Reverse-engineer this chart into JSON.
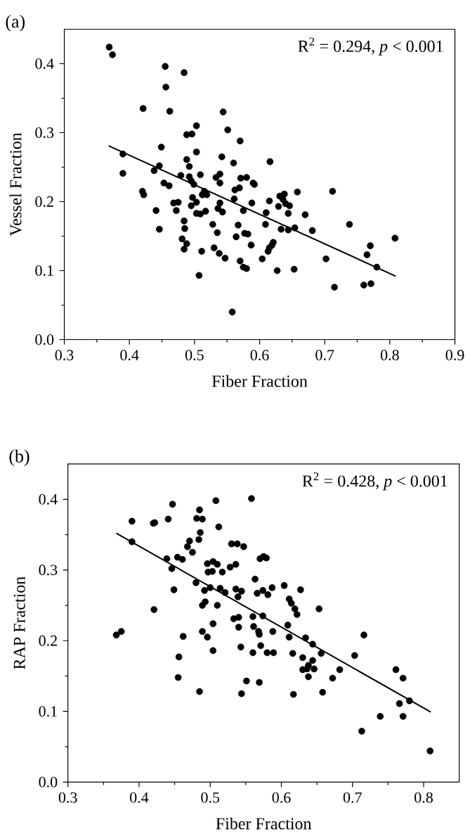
{
  "chart_data": [
    {
      "type": "scatter",
      "title": "(a)",
      "xlabel": "Fiber Fraction",
      "ylabel": "Vessel Fraction",
      "annotations": [
        "R$^{2}$ = 0.294, *p* < 0.001"
      ],
      "xlim": [
        0.3,
        0.9
      ],
      "ylim": [
        0,
        0.45
      ],
      "xticks": [
        0.3,
        0.4,
        0.5,
        0.6,
        0.7,
        0.8,
        0.9
      ],
      "yticks": [
        {
          "value": 0,
          "label": "0.0"
        },
        0.1,
        0.2,
        0.3,
        0.4
      ],
      "marker": "circle",
      "series": [
        {
          "color": "#000000",
          "x": [
            0.369,
            0.374,
            0.455,
            0.484,
            0.456,
            0.421,
            0.462,
            0.544,
            0.503,
            0.551,
            0.488,
            0.496,
            0.57,
            0.449,
            0.503,
            0.39,
            0.488,
            0.542,
            0.492,
            0.56,
            0.446,
            0.438,
            0.39,
            0.479,
            0.509,
            0.492,
            0.533,
            0.539,
            0.539,
            0.571,
            0.58,
            0.59,
            0.592,
            0.453,
            0.461,
            0.495,
            0.499,
            0.42,
            0.422,
            0.515,
            0.512,
            0.519,
            0.562,
            0.569,
            0.475,
            0.468,
            0.497,
            0.503,
            0.495,
            0.561,
            0.539,
            0.588,
            0.441,
            0.472,
            0.503,
            0.509,
            0.517,
            0.536,
            0.543,
            0.575,
            0.484,
            0.485,
            0.446,
            0.528,
            0.567,
            0.481,
            0.535,
            0.577,
            0.582,
            0.564,
            0.488,
            0.587,
            0.484,
            0.53,
            0.511,
            0.538,
            0.547,
            0.57,
            0.575,
            0.58,
            0.507,
            0.558,
            0.616,
            0.631,
            0.638,
            0.658,
            0.712,
            0.636,
            0.615,
            0.64,
            0.646,
            0.629,
            0.61,
            0.644,
            0.67,
            0.609,
            0.633,
            0.644,
            0.654,
            0.681,
            0.738,
            0.621,
            0.619,
            0.615,
            0.613,
            0.808,
            0.77,
            0.765,
            0.604,
            0.702,
            0.78,
            0.627,
            0.653,
            0.715,
            0.76,
            0.771
          ],
          "values": [
            0.424,
            0.413,
            0.396,
            0.387,
            0.366,
            0.335,
            0.331,
            0.33,
            0.31,
            0.304,
            0.297,
            0.298,
            0.288,
            0.279,
            0.272,
            0.269,
            0.261,
            0.265,
            0.251,
            0.256,
            0.252,
            0.245,
            0.241,
            0.238,
            0.239,
            0.236,
            0.235,
            0.24,
            0.227,
            0.234,
            0.235,
            0.227,
            0.225,
            0.227,
            0.223,
            0.23,
            0.225,
            0.215,
            0.21,
            0.215,
            0.21,
            0.21,
            0.217,
            0.22,
            0.199,
            0.198,
            0.206,
            0.199,
            0.194,
            0.204,
            0.198,
            0.198,
            0.187,
            0.187,
            0.183,
            0.182,
            0.186,
            0.19,
            0.185,
            0.187,
            0.172,
            0.161,
            0.16,
            0.167,
            0.166,
            0.146,
            0.155,
            0.154,
            0.153,
            0.149,
            0.139,
            0.137,
            0.131,
            0.133,
            0.128,
            0.125,
            0.118,
            0.114,
            0.105,
            0.103,
            0.093,
            0.04,
            0.258,
            0.208,
            0.211,
            0.214,
            0.215,
            0.203,
            0.201,
            0.197,
            0.194,
            0.193,
            0.184,
            0.183,
            0.181,
            0.167,
            0.16,
            0.159,
            0.162,
            0.158,
            0.167,
            0.141,
            0.137,
            0.133,
            0.128,
            0.147,
            0.136,
            0.123,
            0.117,
            0.117,
            0.105,
            0.1,
            0.102,
            0.076,
            0.079,
            0.081
          ]
        },
        {
          "type": "line",
          "color": "#000000",
          "marker": "none",
          "x": [
            0.368,
            0.809
          ],
          "values": [
            0.281,
            0.092
          ]
        }
      ]
    },
    {
      "type": "scatter",
      "title": "(b)",
      "xlabel": "Fiber Fraction",
      "ylabel": "RAP Fraction",
      "annotations": [
        "R$^{2}$ = 0.428, *p* < 0.001"
      ],
      "xlim": [
        0.3,
        0.85
      ],
      "ylim": [
        0,
        0.45
      ],
      "xticks": [
        0.3,
        0.4,
        0.5,
        0.6,
        0.7,
        0.8
      ],
      "yticks": [
        {
          "value": 0,
          "label": "0.0"
        },
        0.1,
        0.2,
        0.3,
        0.4
      ],
      "marker": "circle",
      "series": [
        {
          "color": "#000000",
          "x": [
            0.508,
            0.447,
            0.485,
            0.481,
            0.489,
            0.441,
            0.39,
            0.42,
            0.422,
            0.512,
            0.486,
            0.484,
            0.471,
            0.468,
            0.475,
            0.39,
            0.53,
            0.538,
            0.547,
            0.439,
            0.454,
            0.461,
            0.446,
            0.496,
            0.504,
            0.51,
            0.528,
            0.536,
            0.497,
            0.503,
            0.517,
            0.48,
            0.449,
            0.492,
            0.5,
            0.514,
            0.521,
            0.536,
            0.544,
            0.539,
            0.493,
            0.489,
            0.51,
            0.421,
            0.533,
            0.54,
            0.504,
            0.54,
            0.368,
            0.375,
            0.489,
            0.462,
            0.496,
            0.543,
            0.504,
            0.456,
            0.455,
            0.551,
            0.485,
            0.544,
            0.558,
            0.57,
            0.575,
            0.579,
            0.563,
            0.604,
            0.627,
            0.566,
            0.574,
            0.581,
            0.587,
            0.611,
            0.614,
            0.619,
            0.622,
            0.653,
            0.56,
            0.574,
            0.561,
            0.568,
            0.569,
            0.588,
            0.609,
            0.611,
            0.634,
            0.644,
            0.656,
            0.571,
            0.56,
            0.58,
            0.589,
            0.616,
            0.63,
            0.644,
            0.63,
            0.636,
            0.646,
            0.638,
            0.638,
            0.672,
            0.682,
            0.703,
            0.716,
            0.569,
            0.617,
            0.658,
            0.761,
            0.771,
            0.78,
            0.766,
            0.739,
            0.771,
            0.713,
            0.809
          ],
          "values": [
            0.398,
            0.393,
            0.385,
            0.373,
            0.372,
            0.372,
            0.369,
            0.366,
            0.367,
            0.361,
            0.353,
            0.343,
            0.341,
            0.333,
            0.325,
            0.34,
            0.337,
            0.337,
            0.333,
            0.316,
            0.318,
            0.315,
            0.302,
            0.309,
            0.312,
            0.308,
            0.304,
            0.308,
            0.297,
            0.298,
            0.297,
            0.282,
            0.272,
            0.271,
            0.275,
            0.274,
            0.268,
            0.273,
            0.27,
            0.262,
            0.255,
            0.25,
            0.25,
            0.244,
            0.231,
            0.233,
            0.224,
            0.219,
            0.208,
            0.213,
            0.213,
            0.206,
            0.205,
            0.191,
            0.186,
            0.177,
            0.148,
            0.143,
            0.128,
            0.125,
            0.401,
            0.316,
            0.319,
            0.317,
            0.287,
            0.278,
            0.272,
            0.267,
            0.271,
            0.265,
            0.275,
            0.259,
            0.253,
            0.245,
            0.237,
            0.245,
            0.234,
            0.235,
            0.22,
            0.213,
            0.209,
            0.213,
            0.222,
            0.205,
            0.204,
            0.195,
            0.182,
            0.193,
            0.183,
            0.183,
            0.183,
            0.182,
            0.176,
            0.172,
            0.159,
            0.16,
            0.16,
            0.165,
            0.149,
            0.147,
            0.159,
            0.179,
            0.208,
            0.141,
            0.124,
            0.127,
            0.159,
            0.147,
            0.115,
            0.111,
            0.093,
            0.093,
            0.072,
            0.044
          ]
        },
        {
          "type": "line",
          "color": "#000000",
          "marker": "none",
          "x": [
            0.368,
            0.81
          ],
          "values": [
            0.352,
            0.099
          ]
        }
      ]
    }
  ]
}
